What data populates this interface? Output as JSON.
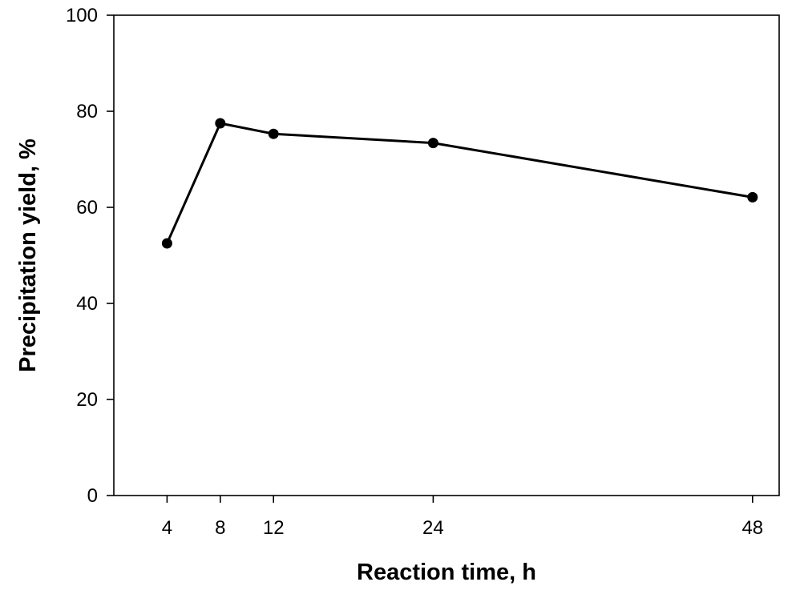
{
  "chart_data": {
    "type": "line",
    "title": "",
    "xlabel": "Reaction time, h",
    "ylabel": "Precipitation yield, %",
    "x": [
      4,
      8,
      12,
      24,
      48
    ],
    "series": [
      {
        "values": [
          52.5,
          77.5,
          75.3,
          73.4,
          62.1
        ]
      }
    ],
    "xticks": [
      4,
      8,
      12,
      24,
      48
    ],
    "yticks": [
      0,
      20,
      40,
      60,
      80,
      100
    ],
    "xlim": [
      0,
      50
    ],
    "ylim": [
      0,
      100
    ],
    "grid": false,
    "legend": "none",
    "colors": {
      "line": "#000000",
      "marker": "#000000"
    }
  }
}
